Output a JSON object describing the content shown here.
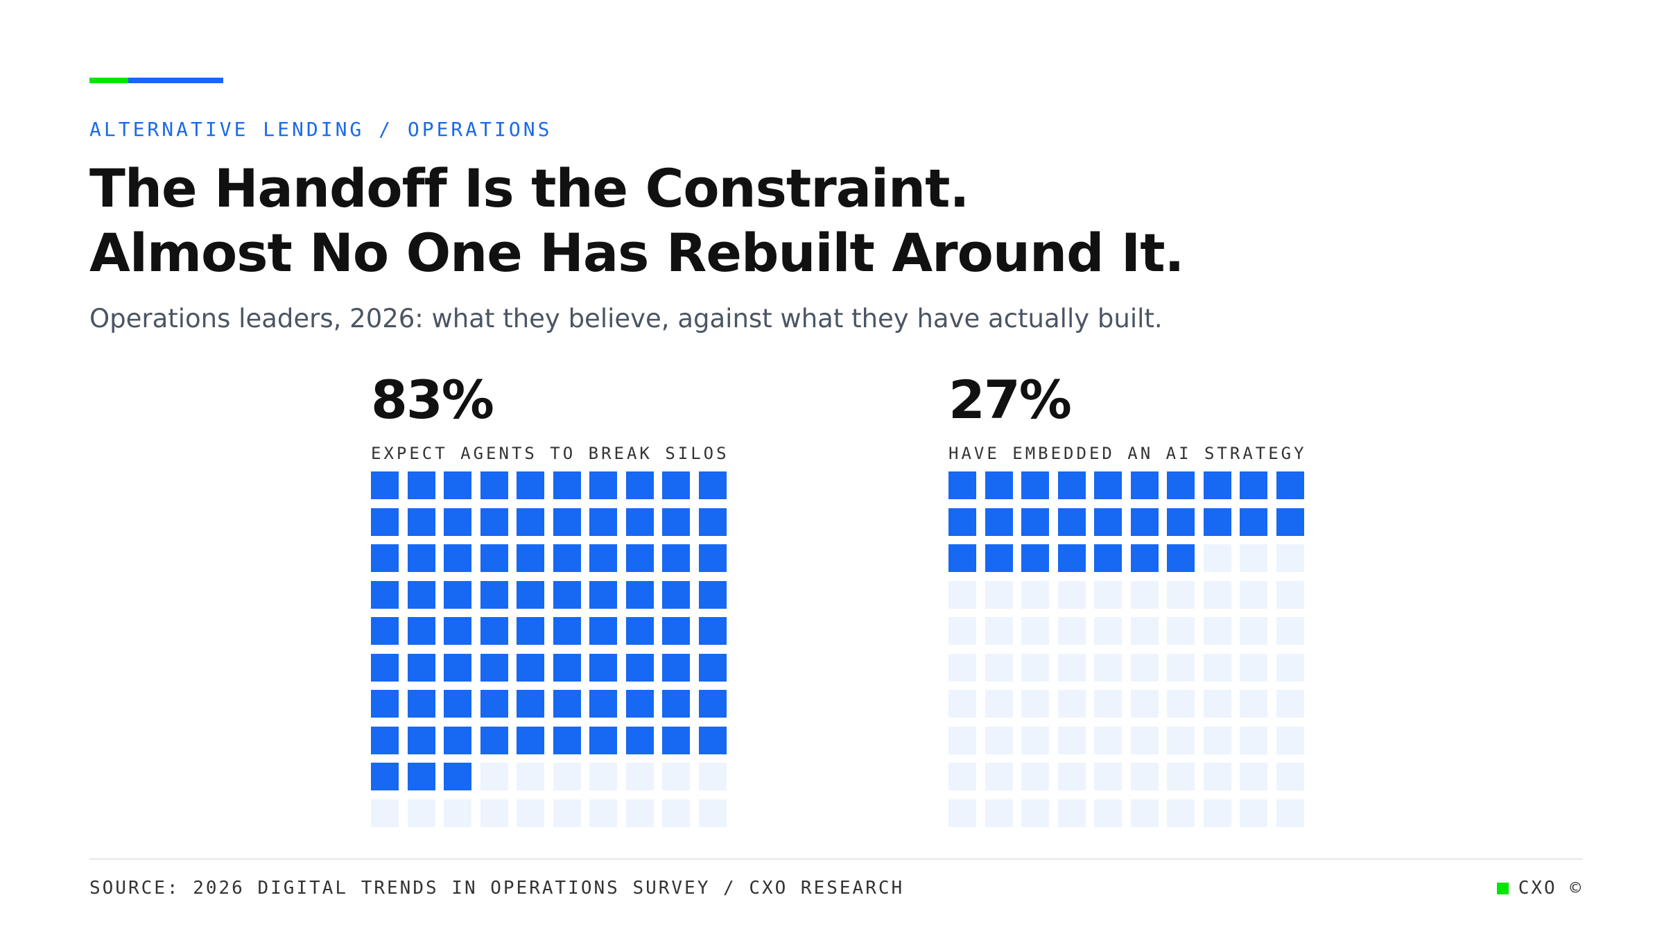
{
  "header": {
    "eyebrow": "ALTERNATIVE LENDING / OPERATIONS",
    "title_line1": "The Handoff Is the Constraint.",
    "title_line2": "Almost No One Has Rebuilt Around It.",
    "subtitle": "Operations leaders, 2026: what they believe, against what they have actually built."
  },
  "chart_data": [
    {
      "type": "waffle",
      "value_label": "83%",
      "value": 83,
      "total": 100,
      "grid": [
        10,
        10
      ],
      "label": "EXPECT AGENTS TO BREAK SILOS"
    },
    {
      "type": "waffle",
      "value_label": "27%",
      "value": 27,
      "total": 100,
      "grid": [
        10,
        10
      ],
      "label": "HAVE EMBEDDED AN AI STRATEGY"
    }
  ],
  "footer": {
    "source": "SOURCE: 2026 DIGITAL TRENDS IN OPERATIONS SURVEY / CXO RESEARCH",
    "brand": "CXO ©"
  },
  "colors": {
    "accent_green": "#00e600",
    "accent_blue": "#1768f2",
    "filled_cell": "#1768f2",
    "empty_cell": "#eef4fd",
    "eyebrow": "#1a6ae6"
  }
}
